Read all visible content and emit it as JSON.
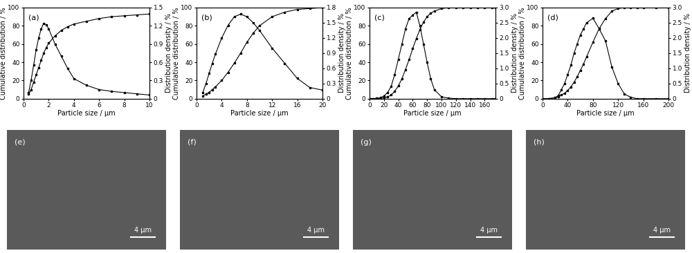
{
  "chart_data": [
    {
      "type": "line",
      "annotation": "(a)",
      "x_label": "Particle size / μm",
      "y_label": "Cumulative distribution / %",
      "y2_label": "Distribution density / %",
      "x": [
        0.4,
        0.6,
        0.8,
        1.0,
        1.2,
        1.4,
        1.6,
        1.8,
        2.0,
        2.5,
        3,
        3.5,
        4,
        5,
        6,
        7,
        8,
        9,
        10
      ],
      "xlim": [
        0,
        10
      ],
      "xticks": [
        0,
        2,
        4,
        6,
        8,
        10
      ],
      "ylim": [
        0,
        100
      ],
      "yticks": [
        0,
        20,
        40,
        60,
        80,
        100
      ],
      "y2lim": [
        0,
        1.5
      ],
      "y2ticks": [
        0,
        0.3,
        0.6,
        0.9,
        1.2,
        1.5
      ],
      "series": [
        {
          "name": "Cumulative distribution",
          "color": "#000000",
          "marker": "s",
          "line_style": "solid",
          "values": [
            5,
            10,
            18,
            26,
            34,
            42,
            50,
            56,
            61,
            69,
            75,
            79,
            82,
            85,
            88,
            90,
            91,
            92,
            93
          ]
        },
        {
          "name": "Distribution density",
          "color": "#000000",
          "marker": "s",
          "line_style": "solid",
          "axis": "y2",
          "values": [
            0.1,
            0.3,
            0.55,
            0.8,
            1.0,
            1.15,
            1.24,
            1.22,
            1.15,
            0.9,
            0.7,
            0.5,
            0.33,
            0.22,
            0.15,
            0.12,
            0.1,
            0.08,
            0.06
          ]
        }
      ]
    },
    {
      "type": "line",
      "annotation": "(b)",
      "x_label": "Particle size / μm",
      "y_label": "Cumulative distribution / %",
      "y2_label": "Distribution density / %",
      "x": [
        1,
        1.5,
        2,
        2.5,
        3,
        4,
        5,
        6,
        7,
        8,
        9,
        10,
        12,
        14,
        16,
        18,
        20
      ],
      "xlim": [
        0,
        20
      ],
      "xticks": [
        0,
        4,
        8,
        12,
        16,
        20
      ],
      "ylim": [
        0,
        100
      ],
      "yticks": [
        0,
        20,
        40,
        60,
        80,
        100
      ],
      "y2lim": [
        0,
        1.8
      ],
      "y2ticks": [
        0,
        0.3,
        0.6,
        0.9,
        1.2,
        1.5,
        1.8
      ],
      "series": [
        {
          "name": "Cumulative distribution",
          "color": "#000000",
          "marker": "s",
          "line_style": "solid",
          "values": [
            3,
            5,
            7,
            10,
            13,
            20,
            29,
            39,
            50,
            62,
            72,
            80,
            90,
            95,
            98,
            99,
            100
          ]
        },
        {
          "name": "Distribution density",
          "color": "#000000",
          "marker": "s",
          "line_style": "solid",
          "axis": "y2",
          "values": [
            0.12,
            0.3,
            0.5,
            0.7,
            0.88,
            1.2,
            1.45,
            1.62,
            1.67,
            1.62,
            1.5,
            1.35,
            1.0,
            0.7,
            0.4,
            0.22,
            0.17
          ]
        }
      ]
    },
    {
      "type": "line",
      "annotation": "(c)",
      "x_label": "Particle size / μm",
      "y_label": "Cumulative distribution / %",
      "y2_label": "Distribution density / %",
      "x": [
        0,
        5,
        10,
        15,
        20,
        25,
        30,
        35,
        40,
        45,
        50,
        55,
        60,
        65,
        70,
        75,
        80,
        85,
        90,
        100,
        110,
        120,
        130,
        140,
        150,
        160,
        170,
        175
      ],
      "xlim": [
        0,
        175
      ],
      "xticks": [
        0,
        20,
        40,
        60,
        80,
        100,
        120,
        140,
        160
      ],
      "ylim": [
        0,
        100
      ],
      "yticks": [
        0,
        20,
        40,
        60,
        80,
        100
      ],
      "y2lim": [
        0,
        3.0
      ],
      "y2ticks": [
        {
          "value": 0,
          "label": "0"
        },
        0.5,
        {
          "value": 1.0,
          "label": "1.0"
        },
        1.5,
        {
          "value": 2.0,
          "label": "2.0"
        },
        2.5,
        {
          "value": 3.0,
          "label": "3.0"
        }
      ],
      "series": [
        {
          "name": "Cumulative distribution",
          "color": "#000000",
          "marker": "s",
          "line_style": "solid",
          "values": [
            0,
            0,
            0.2,
            0.5,
            1,
            2,
            4,
            8,
            14,
            22,
            32,
            43,
            55,
            66,
            76,
            84,
            90,
            94,
            96,
            99,
            100,
            100,
            100,
            100,
            100,
            100,
            100,
            100
          ]
        },
        {
          "name": "Distribution density",
          "color": "#000000",
          "marker": "s",
          "line_style": "solid",
          "axis": "y2",
          "values": [
            0,
            0,
            0.01,
            0.03,
            0.09,
            0.2,
            0.4,
            0.8,
            1.3,
            1.8,
            2.3,
            2.64,
            2.75,
            2.85,
            2.4,
            1.8,
            1.2,
            0.66,
            0.3,
            0.06,
            0.02,
            0,
            0,
            0,
            0,
            0,
            0,
            0
          ]
        }
      ]
    },
    {
      "type": "line",
      "annotation": "(d)",
      "x_label": "Particle size / μm",
      "y_label": "Cumulative distribution / %",
      "y2_label": "Distribution density / %",
      "x": [
        0,
        10,
        20,
        25,
        30,
        35,
        40,
        45,
        50,
        55,
        60,
        65,
        70,
        80,
        90,
        100,
        110,
        120,
        130,
        140,
        150,
        160,
        180,
        200
      ],
      "xlim": [
        0,
        200
      ],
      "xticks": [
        0,
        40,
        80,
        120,
        160,
        200
      ],
      "ylim": [
        0,
        100
      ],
      "yticks": [
        0,
        20,
        40,
        60,
        80,
        100
      ],
      "y2lim": [
        0,
        3.0
      ],
      "y2ticks": [
        {
          "value": 0,
          "label": "0"
        },
        0.5,
        {
          "value": 1.0,
          "label": "1.0"
        },
        1.5,
        {
          "value": 2.0,
          "label": "2.0"
        },
        2.5,
        {
          "value": 3.0,
          "label": "3.0"
        }
      ],
      "series": [
        {
          "name": "Cumulative distribution",
          "color": "#000000",
          "marker": "s",
          "line_style": "solid",
          "values": [
            0,
            0,
            1,
            2,
            4,
            6,
            9,
            13,
            18,
            24,
            31,
            38,
            46,
            62,
            77,
            88,
            96,
            99,
            100,
            100,
            100,
            100,
            100,
            100
          ]
        },
        {
          "name": "Distribution density",
          "color": "#000000",
          "marker": "s",
          "line_style": "solid",
          "axis": "y2",
          "values": [
            0,
            0,
            0.03,
            0.1,
            0.3,
            0.5,
            0.8,
            1.1,
            1.5,
            1.8,
            2.1,
            2.3,
            2.5,
            2.65,
            2.3,
            1.9,
            1.05,
            0.5,
            0.15,
            0.05,
            0,
            0,
            0,
            0
          ]
        }
      ]
    }
  ],
  "images": [
    {
      "label": "(e)",
      "scale_bar": "4 μm"
    },
    {
      "label": "(f)",
      "scale_bar": "4 μm"
    },
    {
      "label": "(g)",
      "scale_bar": "4 μm"
    },
    {
      "label": "(h)",
      "scale_bar": "4 μm"
    }
  ]
}
